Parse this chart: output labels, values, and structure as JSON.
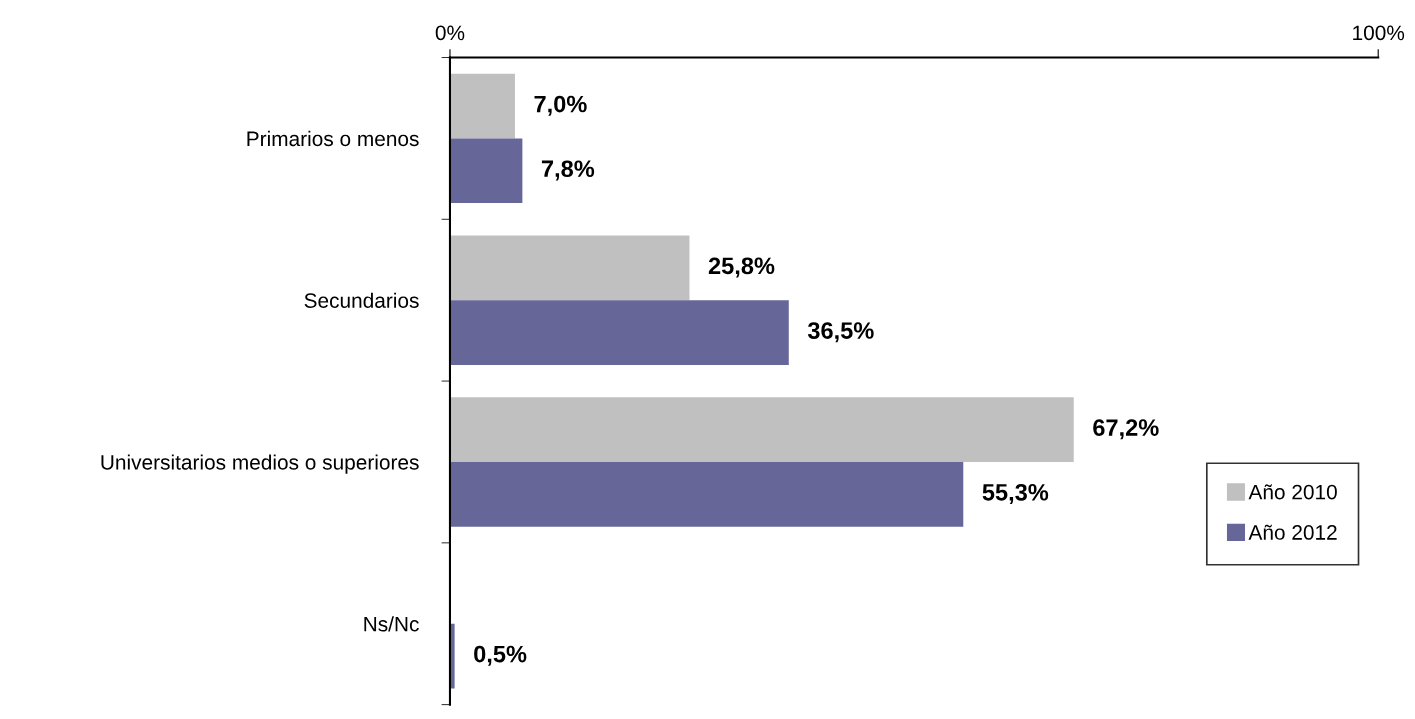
{
  "chart_data": {
    "type": "bar",
    "orientation": "horizontal",
    "categories": [
      "Primarios o menos",
      "Secundarios",
      "Universitarios medios o superiores",
      "Ns/Nc"
    ],
    "series": [
      {
        "name": "Año 2010",
        "color": "#c0c0c0",
        "values": [
          7.0,
          25.8,
          67.2,
          null
        ],
        "value_labels": [
          "7,0%",
          "25,8%",
          "67,2%",
          null
        ]
      },
      {
        "name": "Año 2012",
        "color": "#666699",
        "values": [
          7.8,
          36.5,
          55.3,
          0.5
        ],
        "value_labels": [
          "7,8%",
          "36,5%",
          "55,3%",
          "0,5%"
        ]
      }
    ],
    "xlim": [
      0,
      100
    ],
    "xticks": [
      {
        "value": 0,
        "label": "0%"
      },
      {
        "value": 100,
        "label": "100%"
      }
    ],
    "grid": false,
    "legend": "bottom right"
  }
}
